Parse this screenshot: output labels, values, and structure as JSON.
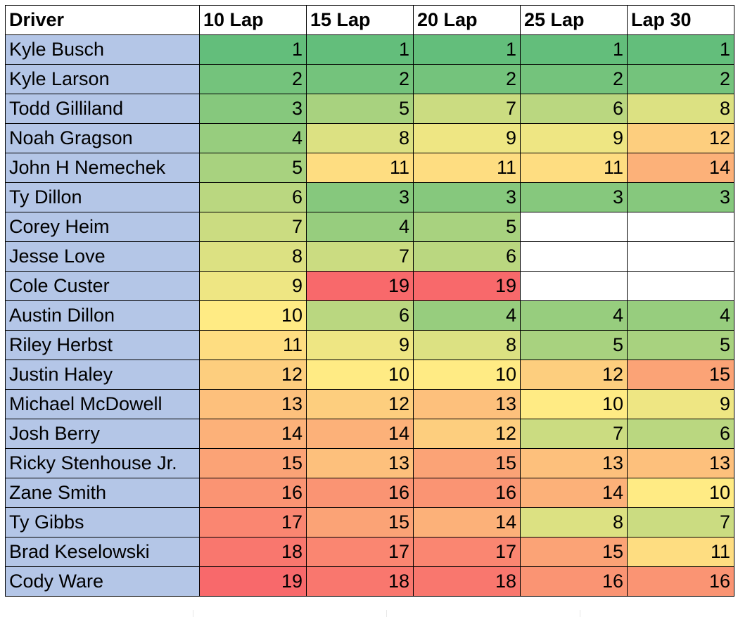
{
  "colors": {
    "driver_cell": "#b4c6e7",
    "scale_best": "#63be7b",
    "scale_mid": "#ffeb84",
    "scale_worst": "#f8696b",
    "empty_cell": "#ffffff",
    "border": "#000000"
  },
  "color_scale_max": 19,
  "table": {
    "headers": [
      "Driver",
      "10 Lap",
      "15 Lap",
      "20 Lap",
      "25 Lap",
      "Lap 30"
    ],
    "rows": [
      {
        "driver": "Kyle Busch",
        "values": [
          1,
          1,
          1,
          1,
          1
        ]
      },
      {
        "driver": "Kyle Larson",
        "values": [
          2,
          2,
          2,
          2,
          2
        ]
      },
      {
        "driver": "Todd Gilliland",
        "values": [
          3,
          5,
          7,
          6,
          8
        ]
      },
      {
        "driver": "Noah Gragson",
        "values": [
          4,
          8,
          9,
          9,
          12
        ]
      },
      {
        "driver": "John H Nemechek",
        "values": [
          5,
          11,
          11,
          11,
          14
        ]
      },
      {
        "driver": "Ty Dillon",
        "values": [
          6,
          3,
          3,
          3,
          3
        ]
      },
      {
        "driver": "Corey Heim",
        "values": [
          7,
          4,
          5,
          null,
          null
        ]
      },
      {
        "driver": "Jesse Love",
        "values": [
          8,
          7,
          6,
          null,
          null
        ]
      },
      {
        "driver": "Cole Custer",
        "values": [
          9,
          19,
          19,
          null,
          null
        ]
      },
      {
        "driver": "Austin Dillon",
        "values": [
          10,
          6,
          4,
          4,
          4
        ]
      },
      {
        "driver": "Riley Herbst",
        "values": [
          11,
          9,
          8,
          5,
          5
        ]
      },
      {
        "driver": "Justin Haley",
        "values": [
          12,
          10,
          10,
          12,
          15
        ]
      },
      {
        "driver": "Michael McDowell",
        "values": [
          13,
          12,
          13,
          10,
          9
        ]
      },
      {
        "driver": "Josh Berry",
        "values": [
          14,
          14,
          12,
          7,
          6
        ]
      },
      {
        "driver": "Ricky Stenhouse Jr.",
        "values": [
          15,
          13,
          15,
          13,
          13
        ]
      },
      {
        "driver": "Zane Smith",
        "values": [
          16,
          16,
          16,
          14,
          10
        ]
      },
      {
        "driver": "Ty Gibbs",
        "values": [
          17,
          15,
          14,
          8,
          7
        ]
      },
      {
        "driver": "Brad Keselowski",
        "values": [
          18,
          17,
          17,
          15,
          11
        ]
      },
      {
        "driver": "Cody Ware",
        "values": [
          19,
          18,
          18,
          16,
          16
        ]
      }
    ]
  }
}
